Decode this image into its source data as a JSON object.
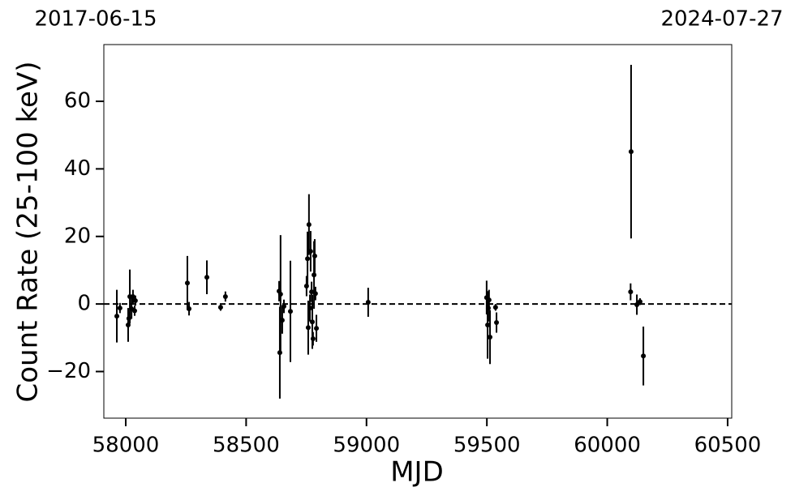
{
  "chart_data": {
    "type": "errorbar",
    "xlabel": "MJD",
    "ylabel": "Count Rate (25-100 keV)",
    "date_labels": [
      "2017-06-15",
      "2024-07-27"
    ],
    "color": "#000000",
    "reference_line": 0,
    "xlim": [
      57909,
      60517
    ],
    "ylim": [
      -33.8,
      76.8
    ],
    "xticks": [
      58000,
      58500,
      59000,
      59500,
      60000,
      60500
    ],
    "yticks": [
      {
        "value": -20,
        "label": "−20"
      },
      0,
      20,
      40,
      60
    ],
    "x": [
      57963,
      57976,
      58010,
      58013,
      58017,
      58024,
      58030,
      58037,
      58040,
      58256,
      58263,
      58337,
      58394,
      58414,
      58637,
      58640,
      58643,
      58650,
      58657,
      58684,
      58751,
      58755,
      58758,
      58761,
      58765,
      58768,
      58772,
      58775,
      58778,
      58782,
      58785,
      58788,
      58792,
      59007,
      59499,
      59503,
      59506,
      59509,
      59513,
      59536,
      59540,
      60099,
      60097,
      60123,
      60136,
      60150
    ],
    "values": [
      -3.6,
      -1.2,
      -6.2,
      -4.3,
      2.2,
      -1.4,
      2.2,
      -2,
      1,
      6.2,
      -1.4,
      7.9,
      -1,
      2.2,
      3.8,
      -14.4,
      2.9,
      -4.8,
      -0.7,
      -2.2,
      5.3,
      13.4,
      -7,
      23.5,
      -1.2,
      15.6,
      3.6,
      -5.3,
      -10.3,
      8.6,
      14.2,
      3.1,
      -7.2,
      0.5,
      1.9,
      -6.2,
      -1.2,
      1.2,
      -9.8,
      -1,
      -5.5,
      45.1,
      3.6,
      -0.2,
      0.7,
      -15.4
    ],
    "errors": [
      7.8,
      1.5,
      5,
      2,
      8,
      3,
      2,
      1.5,
      1.5,
      8,
      2,
      5,
      1,
      1.5,
      3,
      13.6,
      17.5,
      4,
      2,
      15,
      3,
      8,
      8,
      9,
      4,
      6,
      3,
      8,
      2,
      10,
      5,
      2,
      4,
      4.3,
      5,
      10,
      4,
      3,
      8,
      1,
      3,
      25.7,
      2.5,
      3,
      1,
      8.7
    ]
  }
}
